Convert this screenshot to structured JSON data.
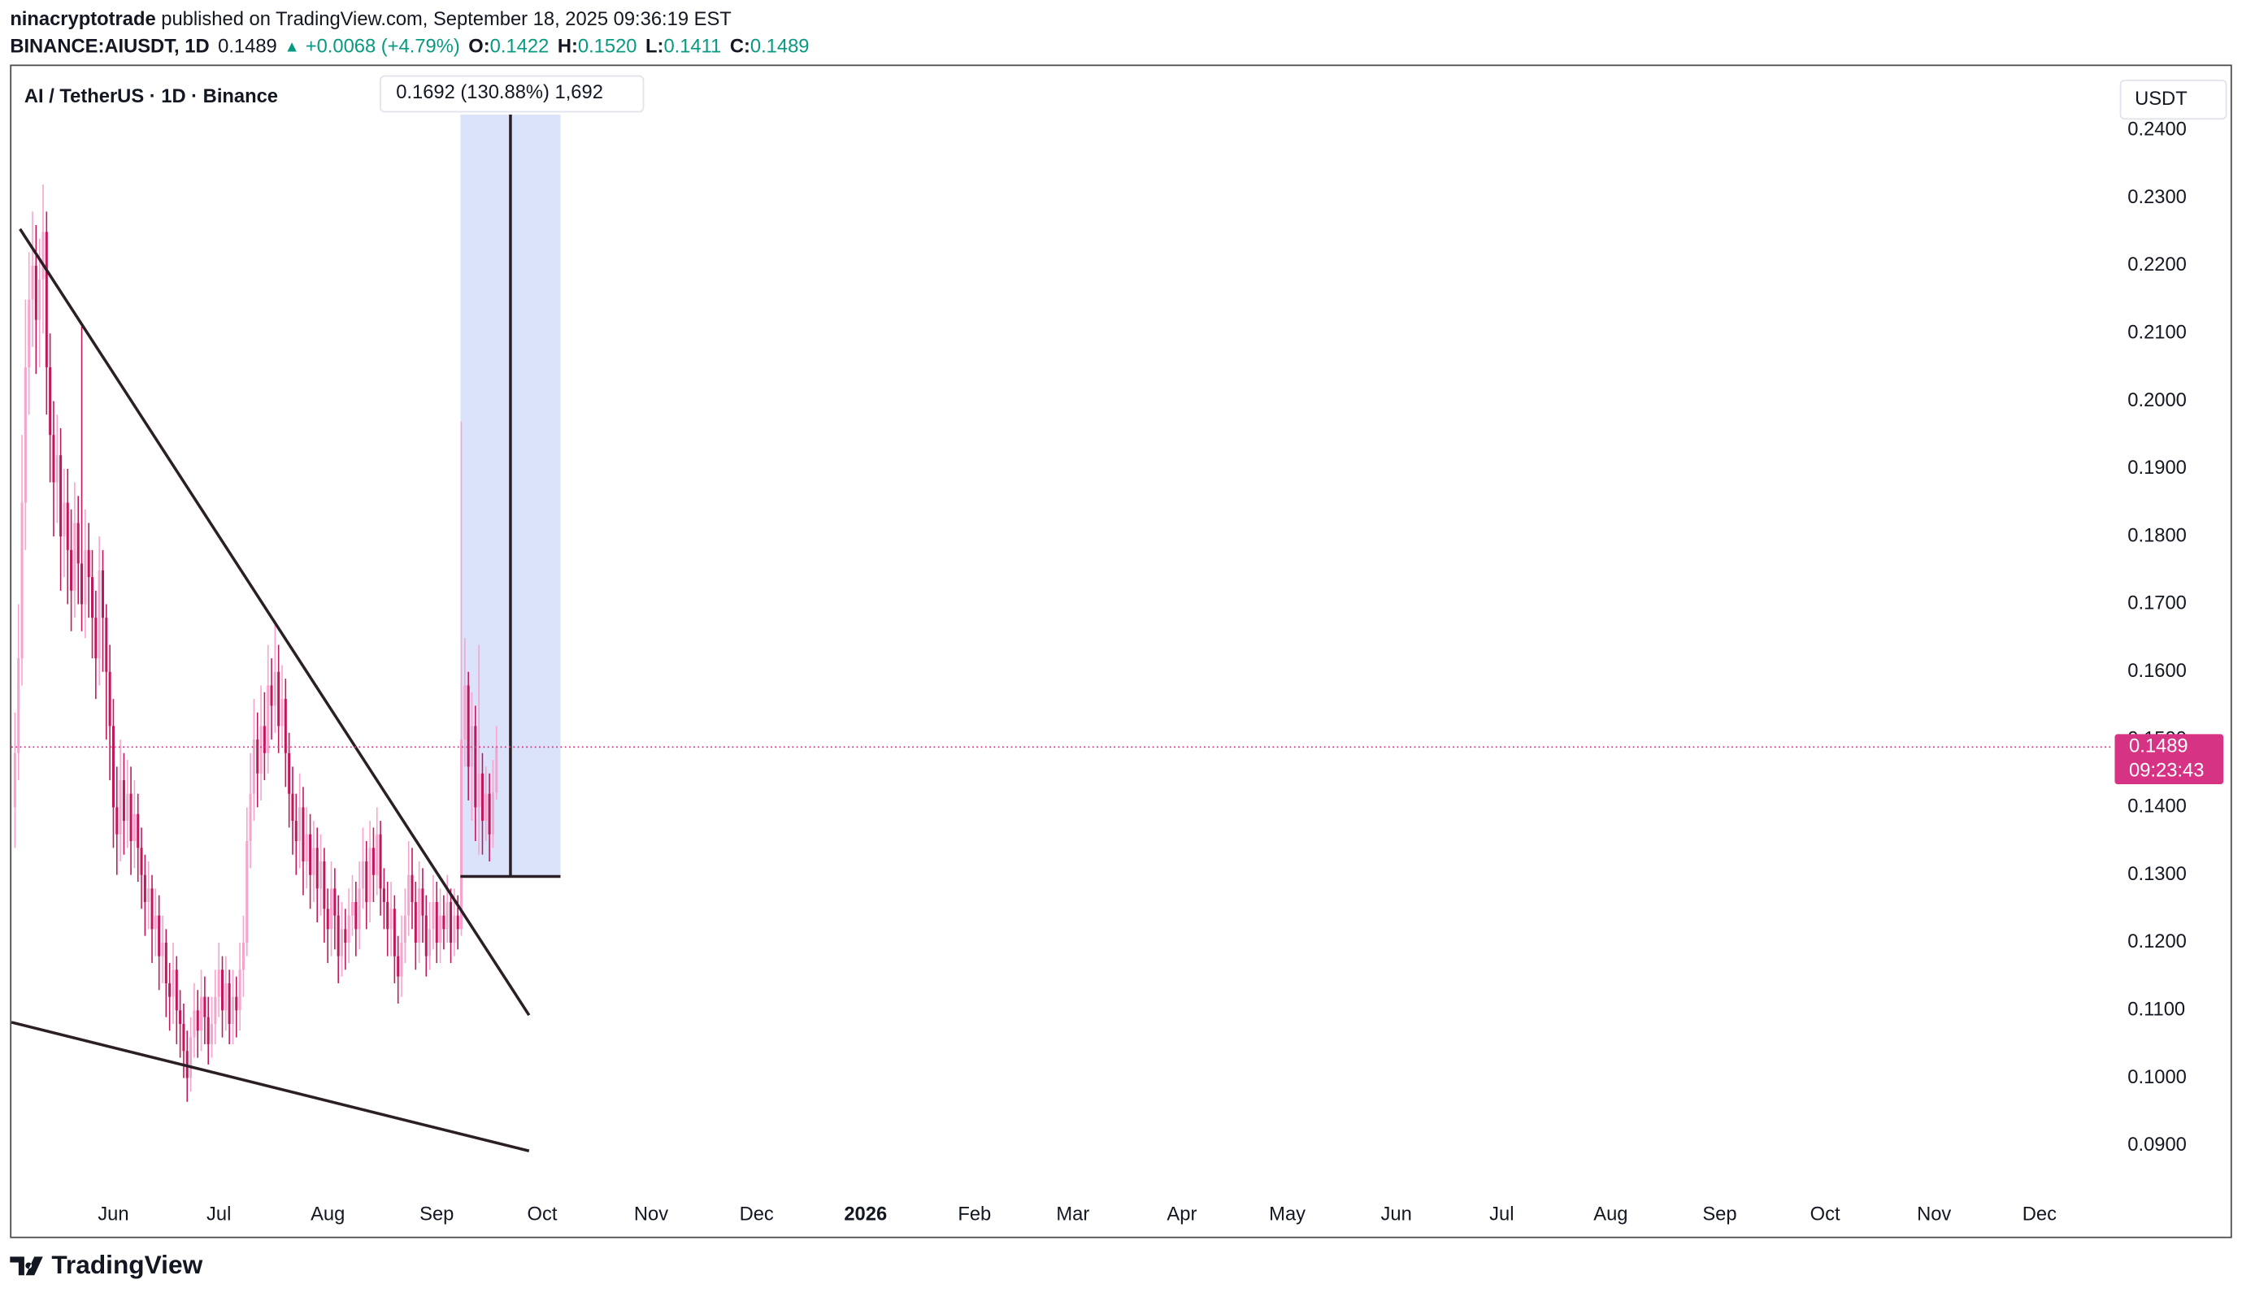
{
  "header": {
    "author": "ninacryptotrade",
    "published": " published on TradingView.com, September 18, 2025 09:36:19 EST",
    "symbol": "BINANCE:AIUSDT, 1D",
    "price": "0.1489",
    "arrow": "▲",
    "change": "+0.0068 (+4.79%)",
    "o_label": "O:",
    "o": "0.1422",
    "h_label": "H:",
    "h": "0.1520",
    "l_label": "L:",
    "l": "0.1411",
    "c_label": "C:",
    "c": "0.1489"
  },
  "footer": {
    "logo": "TradingView"
  },
  "chart_data": {
    "type": "candlestick",
    "title": "AI / TetherUS · 1D · Binance",
    "currency": "USDT",
    "measure_label": "0.1692 (130.88%) 1,692",
    "last_price": {
      "value": 0.1489,
      "label": "0.1489"
    },
    "countdown": "09:23:43",
    "color_up": "#f7a3cd",
    "color_down": "#c2185b",
    "price_line_color": "#d63384",
    "xlim": [
      "2025-05-03",
      "2026-12-22"
    ],
    "xticks": [
      {
        "value": "2025-06-01",
        "label": "Jun"
      },
      {
        "value": "2025-07-01",
        "label": "Jul"
      },
      {
        "value": "2025-08-01",
        "label": "Aug"
      },
      {
        "value": "2025-09-01",
        "label": "Sep"
      },
      {
        "value": "2025-10-01",
        "label": "Oct"
      },
      {
        "value": "2025-11-01",
        "label": "Nov"
      },
      {
        "value": "2025-12-01",
        "label": "Dec"
      },
      {
        "value": "2026-01-01",
        "label": "2026"
      },
      {
        "value": "2026-02-01",
        "label": "Feb"
      },
      {
        "value": "2026-03-01",
        "label": "Mar"
      },
      {
        "value": "2026-04-01",
        "label": "Apr"
      },
      {
        "value": "2026-05-01",
        "label": "May"
      },
      {
        "value": "2026-06-01",
        "label": "Jun"
      },
      {
        "value": "2026-07-01",
        "label": "Jul"
      },
      {
        "value": "2026-08-01",
        "label": "Aug"
      },
      {
        "value": "2026-09-01",
        "label": "Sep"
      },
      {
        "value": "2026-10-01",
        "label": "Oct"
      },
      {
        "value": "2026-11-01",
        "label": "Nov"
      },
      {
        "value": "2026-12-01",
        "label": "Dec"
      }
    ],
    "ylim": [
      0.0829,
      0.2476
    ],
    "yticks": [
      {
        "value": 0.09,
        "label": "0.0900"
      },
      {
        "value": 0.1,
        "label": "0.1000"
      },
      {
        "value": 0.11,
        "label": "0.1100"
      },
      {
        "value": 0.12,
        "label": "0.1200"
      },
      {
        "value": 0.13,
        "label": "0.1300"
      },
      {
        "value": 0.14,
        "label": "0.1400"
      },
      {
        "value": 0.15,
        "label": "0.1500"
      },
      {
        "value": 0.16,
        "label": "0.1600"
      },
      {
        "value": 0.17,
        "label": "0.1700"
      },
      {
        "value": 0.18,
        "label": "0.1800"
      },
      {
        "value": 0.19,
        "label": "0.1900"
      },
      {
        "value": 0.2,
        "label": "0.2000"
      },
      {
        "value": 0.21,
        "label": "0.2100"
      },
      {
        "value": 0.22,
        "label": "0.2200"
      },
      {
        "value": 0.23,
        "label": "0.2300"
      },
      {
        "value": 0.24,
        "label": "0.2400"
      }
    ],
    "x": [
      "2025-05-04",
      "2025-05-05",
      "2025-05-06",
      "2025-05-07",
      "2025-05-08",
      "2025-05-09",
      "2025-05-10",
      "2025-05-11",
      "2025-05-12",
      "2025-05-13",
      "2025-05-14",
      "2025-05-15",
      "2025-05-16",
      "2025-05-17",
      "2025-05-18",
      "2025-05-19",
      "2025-05-20",
      "2025-05-21",
      "2025-05-22",
      "2025-05-23",
      "2025-05-24",
      "2025-05-25",
      "2025-05-26",
      "2025-05-27",
      "2025-05-28",
      "2025-05-29",
      "2025-05-30",
      "2025-05-31",
      "2025-06-01",
      "2025-06-02",
      "2025-06-03",
      "2025-06-04",
      "2025-06-05",
      "2025-06-06",
      "2025-06-07",
      "2025-06-08",
      "2025-06-09",
      "2025-06-10",
      "2025-06-11",
      "2025-06-12",
      "2025-06-13",
      "2025-06-14",
      "2025-06-15",
      "2025-06-16",
      "2025-06-17",
      "2025-06-18",
      "2025-06-19",
      "2025-06-20",
      "2025-06-21",
      "2025-06-22",
      "2025-06-23",
      "2025-06-24",
      "2025-06-25",
      "2025-06-26",
      "2025-06-27",
      "2025-06-28",
      "2025-06-29",
      "2025-06-30",
      "2025-07-01",
      "2025-07-02",
      "2025-07-03",
      "2025-07-04",
      "2025-07-05",
      "2025-07-06",
      "2025-07-07",
      "2025-07-08",
      "2025-07-09",
      "2025-07-10",
      "2025-07-11",
      "2025-07-12",
      "2025-07-13",
      "2025-07-14",
      "2025-07-15",
      "2025-07-16",
      "2025-07-17",
      "2025-07-18",
      "2025-07-19",
      "2025-07-20",
      "2025-07-21",
      "2025-07-22",
      "2025-07-23",
      "2025-07-24",
      "2025-07-25",
      "2025-07-26",
      "2025-07-27",
      "2025-07-28",
      "2025-07-29",
      "2025-07-30",
      "2025-07-31",
      "2025-08-01",
      "2025-08-02",
      "2025-08-03",
      "2025-08-04",
      "2025-08-05",
      "2025-08-06",
      "2025-08-07",
      "2025-08-08",
      "2025-08-09",
      "2025-08-10",
      "2025-08-11",
      "2025-08-12",
      "2025-08-13",
      "2025-08-14",
      "2025-08-15",
      "2025-08-16",
      "2025-08-17",
      "2025-08-18",
      "2025-08-19",
      "2025-08-20",
      "2025-08-21",
      "2025-08-22",
      "2025-08-23",
      "2025-08-24",
      "2025-08-25",
      "2025-08-26",
      "2025-08-27",
      "2025-08-28",
      "2025-08-29",
      "2025-08-30",
      "2025-08-31",
      "2025-09-01",
      "2025-09-02",
      "2025-09-03",
      "2025-09-04",
      "2025-09-05",
      "2025-09-06",
      "2025-09-07",
      "2025-09-08",
      "2025-09-09",
      "2025-09-10",
      "2025-09-11",
      "2025-09-12",
      "2025-09-13",
      "2025-09-14",
      "2025-09-15",
      "2025-09-16",
      "2025-09-17",
      "2025-09-18"
    ],
    "open": [
      0.14,
      0.148,
      0.162,
      0.185,
      0.205,
      0.215,
      0.22,
      0.212,
      0.218,
      0.225,
      0.205,
      0.195,
      0.188,
      0.192,
      0.18,
      0.185,
      0.178,
      0.172,
      0.182,
      0.176,
      0.17,
      0.178,
      0.174,
      0.168,
      0.162,
      0.175,
      0.168,
      0.16,
      0.152,
      0.14,
      0.136,
      0.144,
      0.138,
      0.142,
      0.135,
      0.139,
      0.134,
      0.13,
      0.126,
      0.128,
      0.122,
      0.124,
      0.118,
      0.12,
      0.114,
      0.112,
      0.116,
      0.11,
      0.108,
      0.104,
      0.1,
      0.106,
      0.11,
      0.107,
      0.112,
      0.109,
      0.105,
      0.108,
      0.112,
      0.116,
      0.11,
      0.114,
      0.108,
      0.112,
      0.11,
      0.116,
      0.12,
      0.135,
      0.142,
      0.15,
      0.145,
      0.152,
      0.148,
      0.158,
      0.155,
      0.16,
      0.152,
      0.156,
      0.148,
      0.142,
      0.138,
      0.135,
      0.14,
      0.132,
      0.136,
      0.13,
      0.134,
      0.128,
      0.132,
      0.125,
      0.122,
      0.128,
      0.124,
      0.118,
      0.122,
      0.12,
      0.124,
      0.126,
      0.122,
      0.128,
      0.132,
      0.126,
      0.134,
      0.13,
      0.136,
      0.128,
      0.126,
      0.122,
      0.125,
      0.118,
      0.115,
      0.12,
      0.124,
      0.13,
      0.126,
      0.12,
      0.128,
      0.124,
      0.118,
      0.122,
      0.126,
      0.12,
      0.124,
      0.122,
      0.126,
      0.12,
      0.124,
      0.122,
      0.15,
      0.158,
      0.146,
      0.152,
      0.14,
      0.145,
      0.138,
      0.142,
      0.136,
      0.1422
    ],
    "high": [
      0.154,
      0.17,
      0.195,
      0.215,
      0.222,
      0.228,
      0.226,
      0.224,
      0.232,
      0.228,
      0.21,
      0.2,
      0.198,
      0.196,
      0.19,
      0.19,
      0.184,
      0.188,
      0.186,
      0.211,
      0.184,
      0.182,
      0.178,
      0.172,
      0.18,
      0.178,
      0.17,
      0.164,
      0.156,
      0.146,
      0.15,
      0.148,
      0.147,
      0.146,
      0.144,
      0.142,
      0.137,
      0.133,
      0.132,
      0.13,
      0.128,
      0.127,
      0.124,
      0.122,
      0.117,
      0.12,
      0.118,
      0.113,
      0.111,
      0.107,
      0.109,
      0.114,
      0.113,
      0.116,
      0.115,
      0.112,
      0.112,
      0.116,
      0.12,
      0.118,
      0.118,
      0.116,
      0.116,
      0.115,
      0.12,
      0.124,
      0.14,
      0.148,
      0.156,
      0.154,
      0.158,
      0.157,
      0.164,
      0.162,
      0.167,
      0.164,
      0.161,
      0.159,
      0.151,
      0.146,
      0.142,
      0.145,
      0.143,
      0.14,
      0.139,
      0.138,
      0.137,
      0.136,
      0.134,
      0.128,
      0.132,
      0.131,
      0.127,
      0.126,
      0.125,
      0.128,
      0.13,
      0.129,
      0.132,
      0.137,
      0.135,
      0.138,
      0.137,
      0.14,
      0.138,
      0.131,
      0.129,
      0.129,
      0.127,
      0.121,
      0.124,
      0.128,
      0.135,
      0.134,
      0.129,
      0.132,
      0.131,
      0.127,
      0.126,
      0.13,
      0.129,
      0.128,
      0.127,
      0.13,
      0.128,
      0.128,
      0.127,
      0.197,
      0.165,
      0.16,
      0.157,
      0.155,
      0.164,
      0.148,
      0.146,
      0.145,
      0.147,
      0.152
    ],
    "low": [
      0.134,
      0.144,
      0.158,
      0.178,
      0.198,
      0.208,
      0.204,
      0.205,
      0.21,
      0.198,
      0.188,
      0.18,
      0.182,
      0.172,
      0.174,
      0.17,
      0.166,
      0.168,
      0.17,
      0.166,
      0.165,
      0.168,
      0.162,
      0.156,
      0.158,
      0.16,
      0.15,
      0.144,
      0.134,
      0.13,
      0.132,
      0.133,
      0.134,
      0.13,
      0.131,
      0.129,
      0.125,
      0.121,
      0.122,
      0.117,
      0.118,
      0.113,
      0.114,
      0.109,
      0.107,
      0.108,
      0.105,
      0.103,
      0.1,
      0.0965,
      0.098,
      0.103,
      0.103,
      0.104,
      0.105,
      0.102,
      0.103,
      0.105,
      0.109,
      0.106,
      0.107,
      0.105,
      0.105,
      0.106,
      0.107,
      0.112,
      0.118,
      0.131,
      0.138,
      0.14,
      0.141,
      0.144,
      0.145,
      0.15,
      0.151,
      0.148,
      0.149,
      0.143,
      0.137,
      0.133,
      0.13,
      0.131,
      0.127,
      0.128,
      0.125,
      0.126,
      0.123,
      0.124,
      0.12,
      0.117,
      0.118,
      0.119,
      0.114,
      0.115,
      0.116,
      0.117,
      0.121,
      0.118,
      0.119,
      0.125,
      0.122,
      0.123,
      0.126,
      0.127,
      0.124,
      0.122,
      0.118,
      0.118,
      0.114,
      0.111,
      0.112,
      0.117,
      0.121,
      0.122,
      0.116,
      0.117,
      0.12,
      0.115,
      0.116,
      0.119,
      0.117,
      0.117,
      0.119,
      0.12,
      0.117,
      0.118,
      0.119,
      0.121,
      0.146,
      0.141,
      0.138,
      0.135,
      0.133,
      0.133,
      0.135,
      0.132,
      0.134,
      0.1411
    ],
    "close": [
      0.148,
      0.162,
      0.185,
      0.205,
      0.215,
      0.22,
      0.212,
      0.218,
      0.225,
      0.205,
      0.195,
      0.188,
      0.192,
      0.18,
      0.185,
      0.178,
      0.172,
      0.182,
      0.176,
      0.17,
      0.178,
      0.174,
      0.168,
      0.162,
      0.175,
      0.168,
      0.16,
      0.152,
      0.14,
      0.136,
      0.144,
      0.138,
      0.142,
      0.135,
      0.139,
      0.134,
      0.13,
      0.126,
      0.128,
      0.122,
      0.124,
      0.118,
      0.12,
      0.114,
      0.112,
      0.116,
      0.11,
      0.108,
      0.104,
      0.1,
      0.106,
      0.11,
      0.107,
      0.112,
      0.109,
      0.105,
      0.108,
      0.112,
      0.116,
      0.11,
      0.114,
      0.108,
      0.112,
      0.11,
      0.116,
      0.12,
      0.135,
      0.142,
      0.15,
      0.145,
      0.152,
      0.148,
      0.158,
      0.155,
      0.16,
      0.152,
      0.156,
      0.148,
      0.142,
      0.138,
      0.135,
      0.14,
      0.132,
      0.136,
      0.13,
      0.134,
      0.128,
      0.132,
      0.125,
      0.122,
      0.128,
      0.124,
      0.118,
      0.122,
      0.12,
      0.124,
      0.126,
      0.122,
      0.128,
      0.132,
      0.126,
      0.134,
      0.13,
      0.136,
      0.128,
      0.126,
      0.122,
      0.125,
      0.118,
      0.115,
      0.12,
      0.124,
      0.13,
      0.126,
      0.12,
      0.128,
      0.124,
      0.118,
      0.122,
      0.126,
      0.12,
      0.124,
      0.122,
      0.126,
      0.12,
      0.124,
      0.122,
      0.15,
      0.158,
      0.146,
      0.152,
      0.14,
      0.145,
      0.138,
      0.142,
      0.136,
      0.1422,
      0.1489
    ]
  }
}
